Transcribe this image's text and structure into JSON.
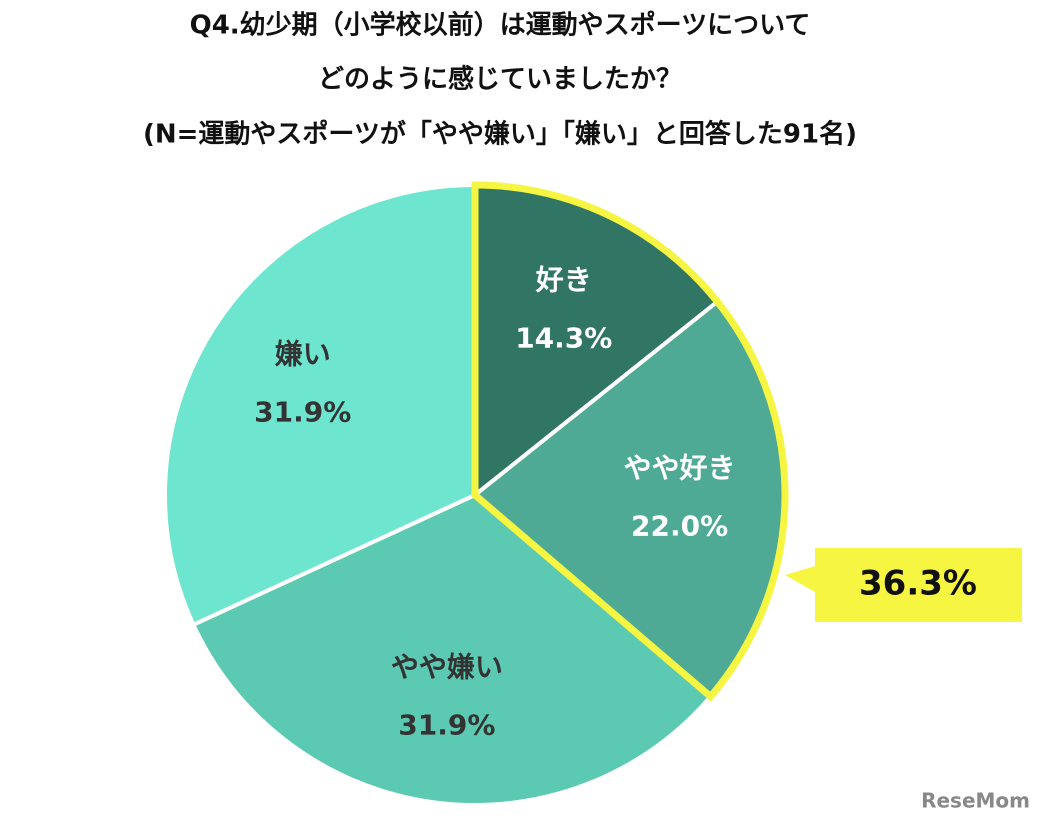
{
  "chart_data": {
    "type": "pie",
    "title": [
      "Q4.幼少期（小学校以前）は運動やスポーツについて",
      "どのように感じていましたか？",
      "(N=運動やスポーツが「やや嫌い」「嫌い」と回答した91名)"
    ],
    "categories": [
      "好き",
      "やや好き",
      "やや嫌い",
      "嫌い"
    ],
    "values": [
      14.3,
      22.0,
      31.9,
      31.9
    ],
    "value_labels": [
      "14.3%",
      "22.0%",
      "31.9%",
      "31.9%"
    ],
    "colors": [
      "#317565",
      "#4ea995",
      "#5ccab2",
      "#6ee6cf"
    ],
    "label_colors": [
      "#ffffff",
      "#ffffff",
      "#333333",
      "#333333"
    ],
    "highlight_color": "#f5f542",
    "annotation": "36.3%",
    "watermark": "ReseMom"
  }
}
